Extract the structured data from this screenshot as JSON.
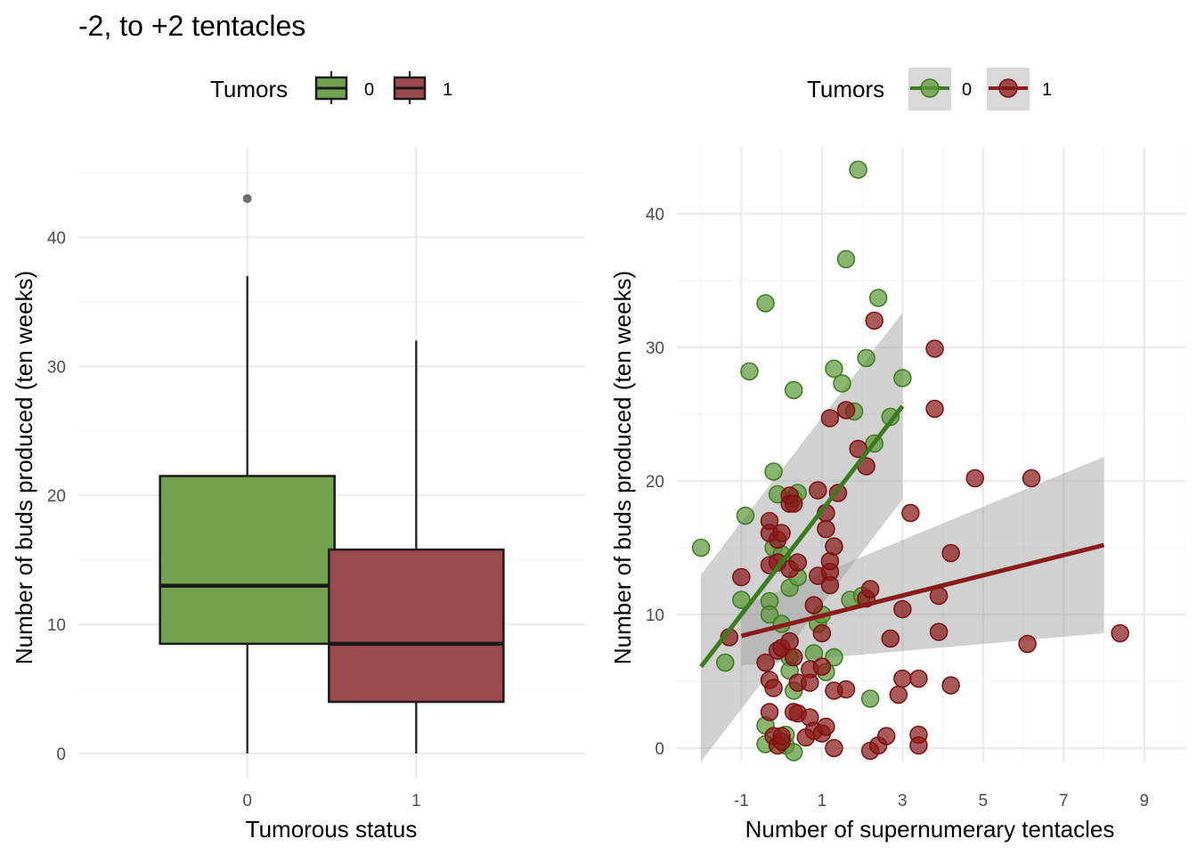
{
  "title": "-2, to +2 tentacles",
  "colors": {
    "tumor_0": "#3A7D1F",
    "tumor_1": "#8B1A1A",
    "box_0": "#73A24E",
    "box_1": "#9B4A4E"
  },
  "chart_data": [
    {
      "type": "boxplot",
      "legend": {
        "title": "Tumors",
        "labels": [
          "0",
          "1"
        ],
        "position": "top"
      },
      "xlabel": "Tumorous status",
      "ylabel": "Number of buds produced (ten weeks)",
      "categories": [
        "0",
        "1"
      ],
      "yticks": [
        0,
        10,
        20,
        30,
        40
      ],
      "ylim": [
        -2,
        47
      ],
      "grid": true,
      "boxes": [
        {
          "category": "0",
          "min": 0,
          "q1": 8.5,
          "median": 13,
          "q3": 21.5,
          "max": 37,
          "outliers": [
            43
          ]
        },
        {
          "category": "1",
          "min": 0,
          "q1": 4,
          "median": 8.5,
          "q3": 15.8,
          "max": 32,
          "outliers": []
        }
      ]
    },
    {
      "type": "scatter",
      "legend": {
        "title": "Tumors",
        "labels": [
          "0",
          "1"
        ],
        "position": "top"
      },
      "xlabel": "Number of supernumerary tentacles",
      "ylabel": "Number of buds produced (ten weeks)",
      "xticks": [
        -1,
        1,
        3,
        5,
        7,
        9
      ],
      "yticks": [
        0,
        10,
        20,
        30,
        40
      ],
      "xlim": [
        -2.6,
        10
      ],
      "ylim": [
        -1,
        45
      ],
      "grid": true,
      "series": [
        {
          "name": "0",
          "points": [
            [
              -2,
              15
            ],
            [
              -1.4,
              6.4
            ],
            [
              -1,
              11.1
            ],
            [
              -0.9,
              17.4
            ],
            [
              -0.8,
              28.2
            ],
            [
              -0.4,
              33.3
            ],
            [
              -0.4,
              1.7
            ],
            [
              -0.4,
              0.3
            ],
            [
              -0.3,
              11
            ],
            [
              -0.3,
              10
            ],
            [
              -0.2,
              20.7
            ],
            [
              -0.2,
              15
            ],
            [
              -0.1,
              19
            ],
            [
              0,
              14.5
            ],
            [
              0,
              9.3
            ],
            [
              0.1,
              1
            ],
            [
              0.1,
              0.2
            ],
            [
              0.2,
              12
            ],
            [
              0.2,
              6.8
            ],
            [
              0.2,
              5.8
            ],
            [
              0.3,
              4.3
            ],
            [
              0.3,
              18.7
            ],
            [
              0.3,
              -0.3
            ],
            [
              0.4,
              19.1
            ],
            [
              0.4,
              12.8
            ],
            [
              0.3,
              26.8
            ],
            [
              0.8,
              7.1
            ],
            [
              0.9,
              9.3
            ],
            [
              1,
              10
            ],
            [
              1.1,
              5.7
            ],
            [
              1.3,
              6.8
            ],
            [
              1.3,
              28.4
            ],
            [
              1.5,
              27.3
            ],
            [
              1.6,
              36.6
            ],
            [
              1.7,
              11.1
            ],
            [
              1.8,
              25.2
            ],
            [
              1.9,
              43.3
            ],
            [
              2,
              11.4
            ],
            [
              2.1,
              29.2
            ],
            [
              2.2,
              3.7
            ],
            [
              2.3,
              22.8
            ],
            [
              2.4,
              33.7
            ],
            [
              2.7,
              24.8
            ],
            [
              3,
              27.7
            ]
          ],
          "trend": {
            "x": [
              -2,
              3
            ],
            "y": [
              6.1,
              25.6
            ],
            "ci_low": [
              -1,
              18.6
            ],
            "ci_high": [
              13,
              32.6
            ]
          }
        },
        {
          "name": "1",
          "points": [
            [
              -1.3,
              8.3
            ],
            [
              -1,
              12.8
            ],
            [
              -0.4,
              6.4
            ],
            [
              -0.3,
              17
            ],
            [
              -0.3,
              16.1
            ],
            [
              -0.3,
              13.7
            ],
            [
              -0.3,
              5.1
            ],
            [
              -0.3,
              2.7
            ],
            [
              -0.2,
              4.5
            ],
            [
              -0.2,
              0.9
            ],
            [
              -0.1,
              15.6
            ],
            [
              -0.1,
              13.9
            ],
            [
              -0.1,
              7.3
            ],
            [
              -0.1,
              0.2
            ],
            [
              0,
              16.1
            ],
            [
              0,
              7.5
            ],
            [
              0,
              0.5
            ],
            [
              0,
              0.9
            ],
            [
              0.2,
              18.9
            ],
            [
              0.2,
              18.3
            ],
            [
              0.2,
              13.4
            ],
            [
              0.2,
              8
            ],
            [
              0.3,
              6.8
            ],
            [
              0.3,
              2.7
            ],
            [
              0.3,
              18.3
            ],
            [
              0.4,
              13.9
            ],
            [
              0.4,
              4.9
            ],
            [
              0.4,
              2.6
            ],
            [
              0.6,
              0.8
            ],
            [
              0.7,
              5.9
            ],
            [
              0.7,
              4.9
            ],
            [
              0.7,
              2.3
            ],
            [
              0.8,
              10.7
            ],
            [
              0.8,
              1.3
            ],
            [
              0.9,
              19.3
            ],
            [
              0.9,
              12.9
            ],
            [
              1,
              8.6
            ],
            [
              1,
              6.1
            ],
            [
              1,
              1.1
            ],
            [
              1.1,
              17.6
            ],
            [
              1.1,
              16.4
            ],
            [
              1.1,
              1.6
            ],
            [
              1.2,
              13.2
            ],
            [
              1.2,
              12.2
            ],
            [
              1.2,
              14
            ],
            [
              1.2,
              24.7
            ],
            [
              1.3,
              15.1
            ],
            [
              1.3,
              4.3
            ],
            [
              1.3,
              0
            ],
            [
              1.4,
              19.1
            ],
            [
              1.6,
              25.3
            ],
            [
              1.6,
              4.4
            ],
            [
              1.9,
              22.4
            ],
            [
              2.1,
              21.1
            ],
            [
              2.1,
              11.2
            ],
            [
              2.2,
              11.9
            ],
            [
              2.2,
              -0.2
            ],
            [
              2.3,
              32
            ],
            [
              2.4,
              0.2
            ],
            [
              2.6,
              0.9
            ],
            [
              2.7,
              8.2
            ],
            [
              2.9,
              4
            ],
            [
              3,
              10.4
            ],
            [
              3,
              5.2
            ],
            [
              3.2,
              17.6
            ],
            [
              3.4,
              5.2
            ],
            [
              3.4,
              1
            ],
            [
              3.4,
              0.2
            ],
            [
              3.8,
              25.4
            ],
            [
              3.8,
              29.9
            ],
            [
              3.9,
              11.4
            ],
            [
              3.9,
              8.7
            ],
            [
              4.2,
              14.6
            ],
            [
              4.2,
              4.7
            ],
            [
              4.8,
              20.2
            ],
            [
              6.1,
              7.8
            ],
            [
              6.2,
              20.2
            ],
            [
              8.4,
              8.6
            ]
          ],
          "trend": {
            "x": [
              -1,
              8
            ],
            "y": [
              8.4,
              15.2
            ],
            "ci_low": [
              6.2,
              8.6
            ],
            "ci_high": [
              10.6,
              21.8
            ]
          }
        }
      ]
    }
  ]
}
